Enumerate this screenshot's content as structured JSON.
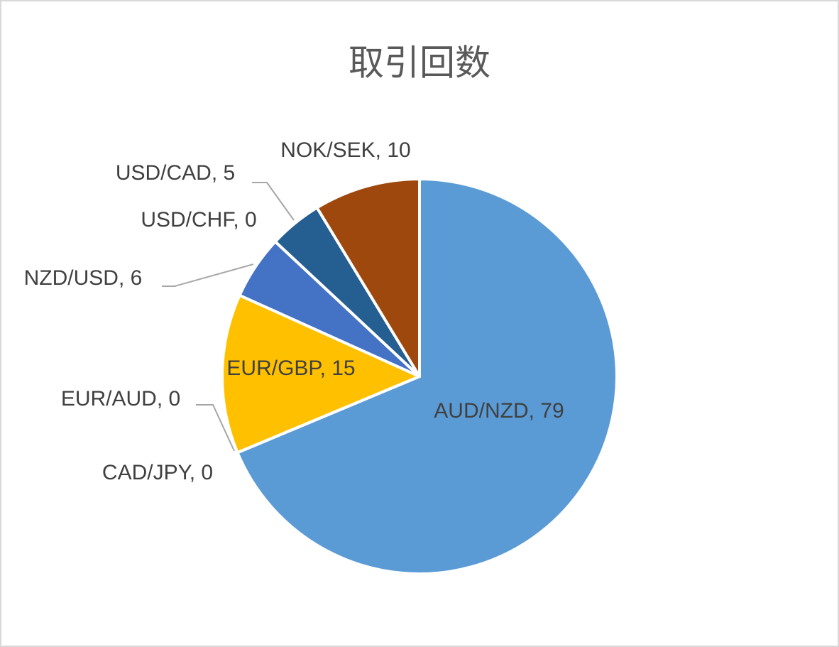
{
  "chart_data": {
    "type": "pie",
    "title": "取引回数",
    "categories": [
      "AUD/NZD",
      "CAD/JPY",
      "EUR/AUD",
      "EUR/GBP",
      "NZD/USD",
      "USD/CHF",
      "USD/CAD",
      "NOK/SEK"
    ],
    "values": [
      79,
      0,
      0,
      15,
      6,
      0,
      5,
      10
    ],
    "value_labels": [
      ", 79",
      ", 0",
      ", 0",
      ", 15",
      ", 6",
      ", 0",
      ", 5",
      ", 10"
    ],
    "colors": [
      "#5b9bd5",
      "#ed7d31",
      "#a5a5a5",
      "#ffc000",
      "#4472c4",
      "#70ad47",
      "#255e91",
      "#9e480e"
    ]
  }
}
